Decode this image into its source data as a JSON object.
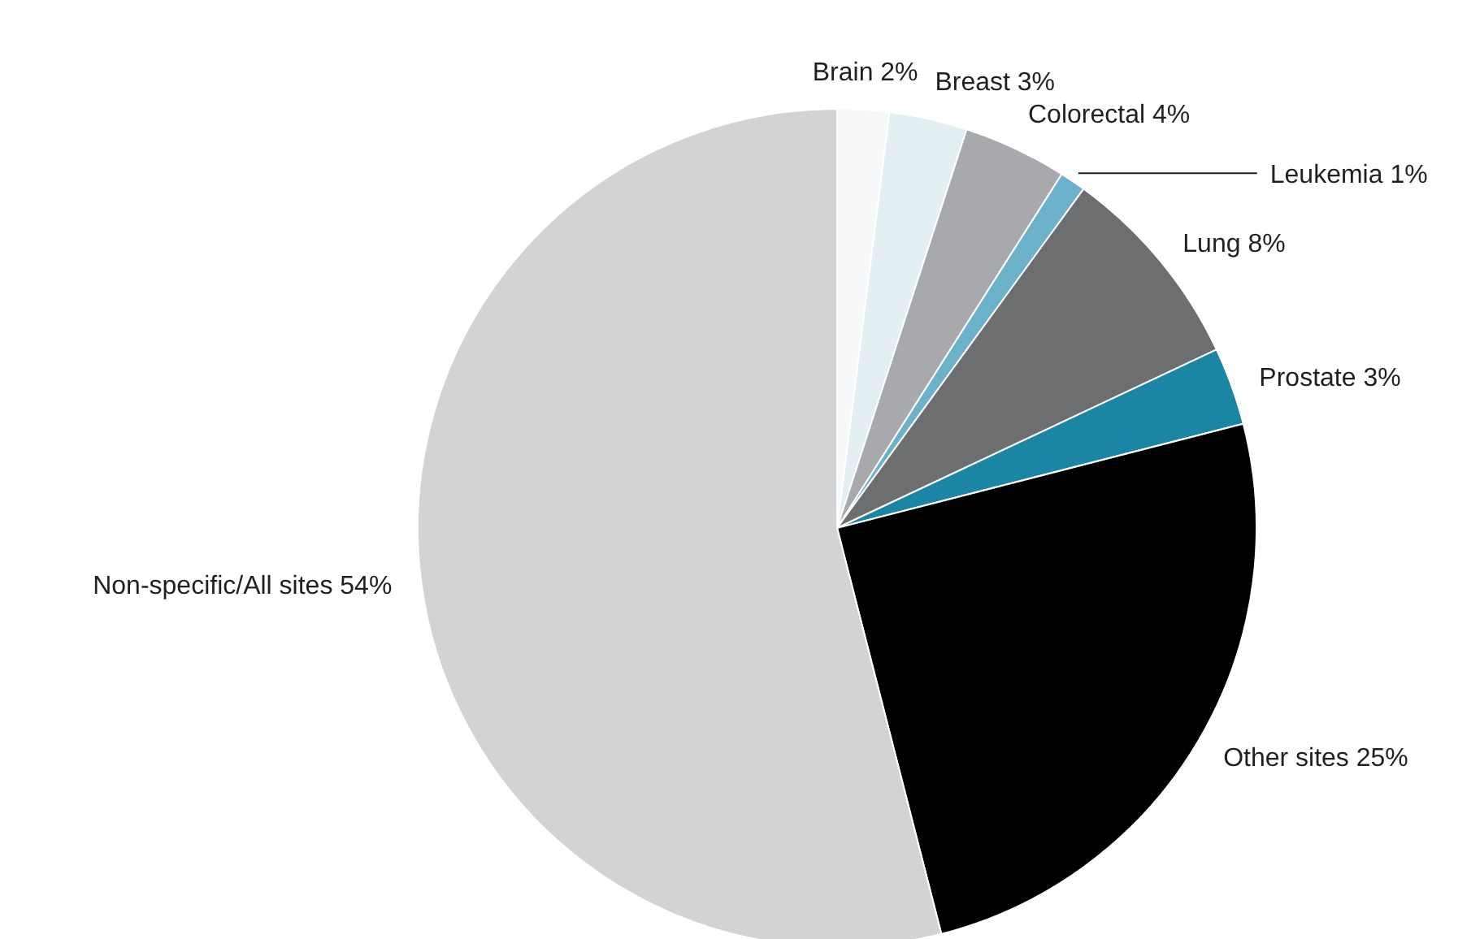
{
  "chart_data": {
    "type": "pie",
    "categories": [
      "Brain",
      "Breast",
      "Colorectal",
      "Leukemia",
      "Lung",
      "Prostate",
      "Other sites",
      "Non-specific/All sites"
    ],
    "values": [
      2,
      3,
      4,
      1,
      8,
      3,
      25,
      54
    ],
    "value_labels": [
      "2%",
      "3%",
      "4%",
      "1%",
      "8%",
      "3%",
      "25%",
      "54%"
    ],
    "colors": [
      "#f6f8f9",
      "#e4eff4",
      "#a7a9ac",
      "#6ab1c9",
      "#6d6e70",
      "#1b86a3",
      "#000000",
      "#d1d3d4"
    ]
  }
}
